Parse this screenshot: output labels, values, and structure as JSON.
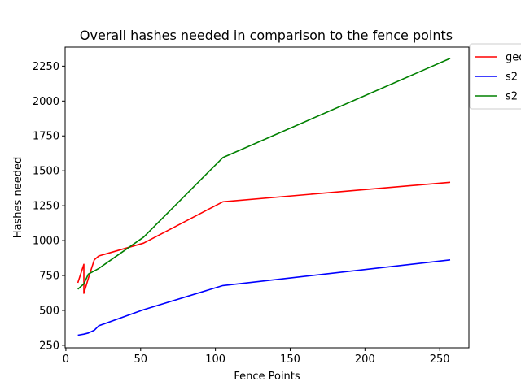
{
  "chart_data": {
    "type": "line",
    "title": "Overall hashes needed in comparison to the fence points",
    "xlabel": "Fence Points",
    "ylabel": "Hashes needed",
    "xlim": [
      -0.5,
      269.5
    ],
    "ylim": [
      232,
      2386
    ],
    "xticks": [
      0,
      50,
      100,
      150,
      200,
      250
    ],
    "yticks": [
      250,
      500,
      750,
      1000,
      1250,
      1500,
      1750,
      2000,
      2250
    ],
    "grid": false,
    "legend_position": "outside-top-right",
    "series": [
      {
        "name": "geo",
        "color": "#ff0000",
        "points": [
          [
            8,
            698
          ],
          [
            12,
            830
          ],
          [
            12,
            622
          ],
          [
            15,
            730
          ],
          [
            19,
            862
          ],
          [
            22,
            890
          ],
          [
            52,
            982
          ],
          [
            105,
            1278
          ],
          [
            257,
            1418
          ]
        ]
      },
      {
        "name": "s2",
        "color": "#0000ff",
        "points": [
          [
            8,
            322
          ],
          [
            12,
            330
          ],
          [
            15,
            338
          ],
          [
            19,
            358
          ],
          [
            22,
            390
          ],
          [
            52,
            505
          ],
          [
            105,
            678
          ],
          [
            257,
            862
          ]
        ]
      },
      {
        "name": "s2",
        "color": "#008000",
        "points": [
          [
            8,
            652
          ],
          [
            12,
            690
          ],
          [
            15,
            760
          ],
          [
            22,
            800
          ],
          [
            52,
            1025
          ],
          [
            105,
            1595
          ],
          [
            257,
            2305
          ]
        ]
      }
    ]
  }
}
